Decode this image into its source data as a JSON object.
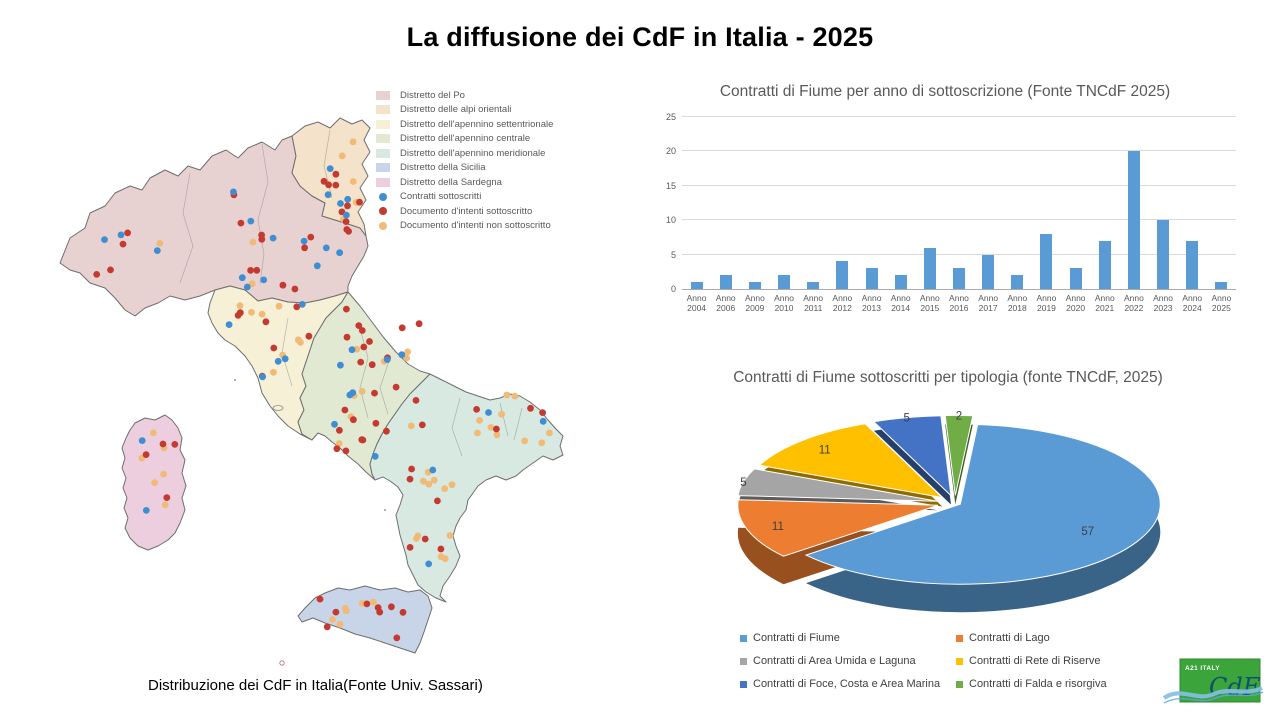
{
  "slide": {
    "title": "La diffusione dei CdF in Italia - 2025"
  },
  "map": {
    "caption": "Distribuzione dei CdF in Italia(Fonte Univ. Sassari)",
    "legend": {
      "districts": [
        {
          "key": "po",
          "label": "Distretto del Po",
          "color": "#e7d2d1"
        },
        {
          "key": "alpi",
          "label": "Distretto delle alpi orientali",
          "color": "#f4e2cb"
        },
        {
          "key": "sett",
          "label": "Distretto dell'apennino settentrionale",
          "color": "#f6f0d6"
        },
        {
          "key": "centr",
          "label": "Distretto dell'apennino centrale",
          "color": "#e2e9d2"
        },
        {
          "key": "merid",
          "label": "Distretto dell'apennino meridionale",
          "color": "#d8e9e2"
        },
        {
          "key": "sicilia",
          "label": "Distretto della Sicilia",
          "color": "#c8d4e7"
        },
        {
          "key": "sardegna",
          "label": "Distretto della Sardegna",
          "color": "#eccede"
        }
      ],
      "markers": [
        {
          "key": "blue",
          "label": "Contratti sottoscritti",
          "color": "#3f8ed4"
        },
        {
          "key": "red",
          "label": "Documento d'intenti sottoscritto",
          "color": "#c43a31"
        },
        {
          "key": "orange",
          "label": "Documento d'intenti non sottoscritto",
          "color": "#f0ba77"
        }
      ]
    },
    "dots": [
      {
        "district": "po",
        "counts": {
          "blue": 13,
          "red": 16,
          "orange": 3
        }
      },
      {
        "district": "alpi",
        "counts": {
          "blue": 5,
          "red": 8,
          "orange": 5
        }
      },
      {
        "district": "sett",
        "counts": {
          "blue": 5,
          "red": 7,
          "orange": 8
        }
      },
      {
        "district": "centr",
        "counts": {
          "blue": 8,
          "red": 22,
          "orange": 8
        }
      },
      {
        "district": "merid",
        "counts": {
          "blue": 4,
          "red": 12,
          "orange": 22
        }
      },
      {
        "district": "sicilia",
        "counts": {
          "blue": 0,
          "red": 9,
          "orange": 6
        }
      },
      {
        "district": "sardegna",
        "counts": {
          "blue": 2,
          "red": 4,
          "orange": 6
        }
      }
    ]
  },
  "chart_data": [
    {
      "type": "bar",
      "title": "Contratti di Fiume per anno di sottoscrizione (Fonte TNCdF 2025)",
      "categories": [
        "Anno 2004",
        "Anno 2006",
        "Anno 2009",
        "Anno 2010",
        "Anno 2011",
        "Anno 2012",
        "Anno 2013",
        "Anno 2014",
        "Anno 2015",
        "Anno 2016",
        "Anno 2017",
        "Anno 2018",
        "Anno 2019",
        "Anno 2020",
        "Anno 2021",
        "Anno 2022",
        "Anno 2023",
        "Anno 2024",
        "Anno 2025"
      ],
      "values": [
        1,
        2,
        1,
        2,
        1,
        4,
        3,
        2,
        6,
        3,
        5,
        2,
        8,
        3,
        7,
        20,
        10,
        7,
        1
      ],
      "xlabel": "",
      "ylabel": "",
      "ylim": [
        0,
        25
      ],
      "yticks": [
        0,
        5,
        10,
        15,
        20,
        25
      ],
      "bar_color": "#5B9BD5",
      "grid": true,
      "legend_position": "none"
    },
    {
      "type": "pie",
      "title": "Contratti di Fiume sottoscritti per tipologia (fonte TNCdF, 2025)",
      "style": "3d-exploded",
      "legend_position": "bottom",
      "series": [
        {
          "name": "Contratti di Fiume",
          "value": 57,
          "color": "#5B9BD5"
        },
        {
          "name": "Contratti di Lago",
          "value": 11,
          "color": "#ED7D31"
        },
        {
          "name": "Contratti di Area Umida e Laguna",
          "value": 5,
          "color": "#A5A5A5"
        },
        {
          "name": "Contratti di Rete di Riserve",
          "value": 11,
          "color": "#FFC000"
        },
        {
          "name": "Contratti di Foce, Costa e Area Marina",
          "value": 5,
          "color": "#4472C4"
        },
        {
          "name": "Contratti di Falda e risorgiva",
          "value": 2,
          "color": "#70AD47"
        }
      ]
    }
  ],
  "logo": {
    "text_top": "A21 ITALY",
    "text_script": "CdF"
  }
}
